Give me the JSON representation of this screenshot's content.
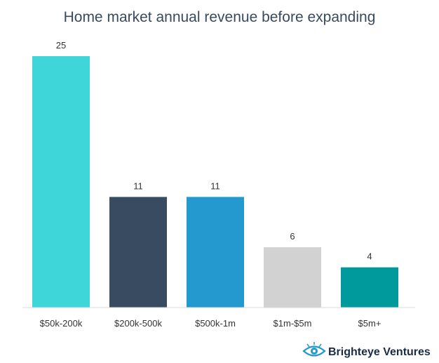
{
  "chart_data": {
    "type": "bar",
    "title": "Home market annual revenue before expanding",
    "categories": [
      "$50k-200k",
      "$200k-500k",
      "$500k-1m",
      "$1m-$5m",
      "$5m+"
    ],
    "values": [
      25,
      11,
      11,
      6,
      4
    ],
    "value_labels": [
      "25",
      "11",
      "11",
      "6",
      "4"
    ],
    "colors": [
      "#3fd6d9",
      "#394b60",
      "#2499cf",
      "#d2d2d2",
      "#00999c"
    ],
    "xlabel": "",
    "ylabel": "",
    "ylim": [
      0,
      25
    ],
    "grid": false,
    "legend": "none"
  },
  "branding": {
    "logo_text": "Brighteye Ventures",
    "logo_icon": "eye-icon",
    "logo_color": "#1a2c45",
    "logo_accent": "#2499cf"
  }
}
